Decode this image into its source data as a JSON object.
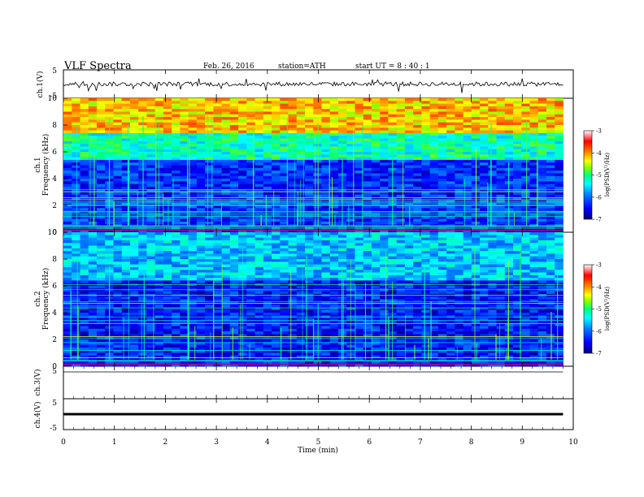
{
  "header": {
    "title": "VLF  Spectra",
    "date": "Feb. 26, 2016",
    "station": "station=ATH",
    "start": "start  UT  =   8  : 40 : 1"
  },
  "colorbar": {
    "ticks": [
      "-3",
      "-4",
      "-5",
      "-6",
      "-7"
    ],
    "label": "log(PSD(V²/Hz)",
    "colors": [
      "#000080",
      "#0000ff",
      "#0080ff",
      "#00ffff",
      "#00ff80",
      "#80ff00",
      "#ffff00",
      "#ff8000",
      "#ff0000",
      "#ffffff"
    ]
  },
  "chart_data": [
    {
      "type": "line",
      "name": "ch1",
      "ylabel": "ch.1(V)",
      "ylim": [
        -5,
        5
      ],
      "yticks": [
        "5",
        "-5"
      ],
      "xlim": [
        0,
        10
      ],
      "description_values": {
        "baseline_v": 0,
        "fluctuation_v": 1.5
      }
    },
    {
      "type": "heatmap",
      "name": "ch1-spectrogram",
      "ylabel": "ch.1",
      "ylabel2": "Frequency  (kHz)",
      "ylim": [
        0,
        10
      ],
      "yticks": [
        "0",
        "2",
        "4",
        "6",
        "8",
        "10"
      ],
      "xlim": [
        0,
        9.8
      ],
      "clim": [
        -7,
        -3
      ],
      "bands_khz": [
        [
          0,
          5.5,
          -6.3
        ],
        [
          5.5,
          7.5,
          -5.2
        ],
        [
          7.5,
          10,
          -4.2
        ]
      ]
    },
    {
      "type": "heatmap",
      "name": "ch2-spectrogram",
      "ylabel": "ch.2",
      "ylabel2": "Frequency  (kHz)",
      "ylim": [
        0,
        10
      ],
      "yticks": [
        "0",
        "2",
        "4",
        "6",
        "8",
        "10"
      ],
      "xlim": [
        0,
        9.8
      ],
      "clim": [
        -7,
        -3
      ],
      "bands_khz": [
        [
          0,
          6.5,
          -6.4
        ],
        [
          6.5,
          10,
          -5.6
        ]
      ]
    },
    {
      "type": "line",
      "name": "ch3",
      "ylabel": "ch.3(V)",
      "ylim": [
        -5,
        5
      ],
      "yticks": [
        "5"
      ],
      "xlim": [
        0,
        10
      ]
    },
    {
      "type": "line",
      "name": "ch4",
      "ylabel": "ch.4(V)",
      "ylim": [
        -5,
        5
      ],
      "yticks": [
        "5",
        "-5"
      ],
      "xlim": [
        0,
        10
      ],
      "values_constant_v": 0
    }
  ],
  "xaxis": {
    "label": "Time  (min)",
    "ticks": [
      "0",
      "1",
      "2",
      "3",
      "4",
      "5",
      "6",
      "7",
      "8",
      "9",
      "10"
    ]
  }
}
